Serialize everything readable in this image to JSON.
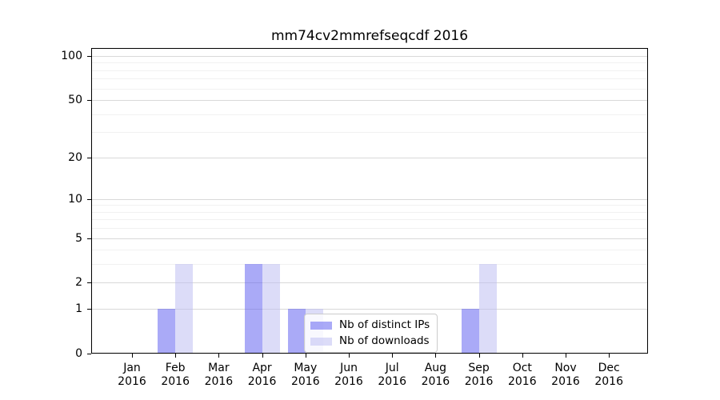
{
  "chart_data": {
    "type": "bar",
    "title": "mm74cv2mmrefseqcdf 2016",
    "year": "2016",
    "categories": [
      "Jan 2016",
      "Feb 2016",
      "Mar 2016",
      "Apr 2016",
      "May 2016",
      "Jun 2016",
      "Jul 2016",
      "Aug 2016",
      "Sep 2016",
      "Oct 2016",
      "Nov 2016",
      "Dec 2016"
    ],
    "month_labels": [
      "Jan",
      "Feb",
      "Mar",
      "Apr",
      "May",
      "Jun",
      "Jul",
      "Aug",
      "Sep",
      "Oct",
      "Nov",
      "Dec"
    ],
    "series": [
      {
        "name": "Nb of distinct IPs",
        "base_color": "#5555f0",
        "opacity": 0.5,
        "rendered_color": "#aaaaf8",
        "values": [
          0,
          1,
          0,
          3,
          1,
          0,
          0,
          0,
          1,
          0,
          0,
          0
        ]
      },
      {
        "name": "Nb of downloads",
        "base_color": "#b9b9f2",
        "opacity": 0.5,
        "rendered_color": "#dcdcf8",
        "values": [
          0,
          3,
          0,
          3,
          1,
          0,
          0,
          0,
          3,
          0,
          0,
          0
        ]
      }
    ],
    "xlabel": "",
    "ylabel": "",
    "y_scale": "log10(1+v)",
    "y_major_ticks": [
      0,
      1,
      2,
      5,
      10,
      20,
      50,
      100
    ],
    "y_minor_gridlines": [
      3,
      4,
      6,
      7,
      8,
      9,
      30,
      40,
      60,
      70,
      80,
      90
    ],
    "ylim": [
      0,
      113
    ],
    "grid": true,
    "legend_position": "lower-center-inside",
    "colors": {
      "major_grid": "#d9d9d9",
      "minor_grid": "#f1f1f1",
      "spine": "#000000",
      "text": "#000000"
    }
  }
}
